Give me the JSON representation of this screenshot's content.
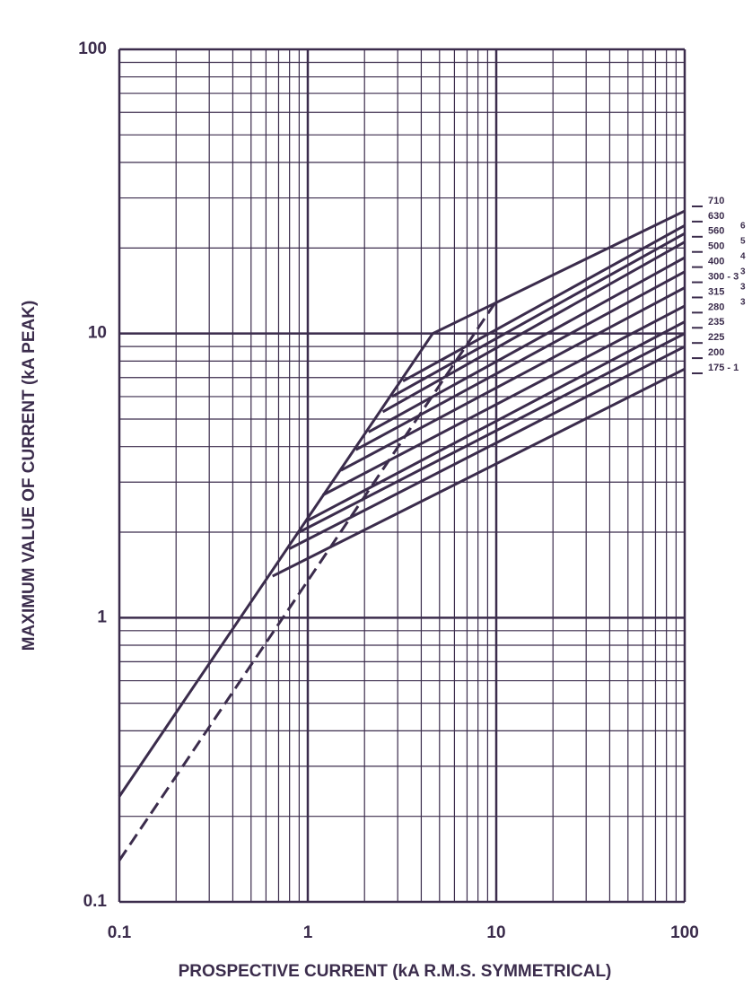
{
  "chart_data": {
    "type": "line",
    "xlabel": "PROSPECTIVE CURRENT (kA R.M.S. SYMMETRICAL)",
    "ylabel": "MAXIMUM VALUE OF CURRENT (kA PEAK)",
    "xlog": true,
    "ylog": true,
    "grid": true,
    "xlim": [
      0.1,
      100
    ],
    "ylim": [
      0.1,
      100
    ],
    "xticks": [
      0.1,
      1,
      10,
      100
    ],
    "yticks": [
      0.1,
      1,
      10,
      100
    ],
    "xminorticks": [
      0.2,
      0.3,
      0.4,
      0.5,
      0.6,
      0.7,
      0.8,
      0.9,
      2,
      3,
      4,
      5,
      6,
      7,
      8,
      9,
      20,
      30,
      40,
      50,
      60,
      70,
      80,
      90
    ],
    "yminorticks": [
      0.2,
      0.3,
      0.4,
      0.5,
      0.6,
      0.7,
      0.8,
      0.9,
      2,
      3,
      4,
      5,
      6,
      7,
      8,
      9,
      20,
      30,
      40,
      50,
      60,
      70,
      80,
      90
    ],
    "color": "#3b2c4c",
    "series": [
      {
        "x": [
          0.1,
          4.6
        ],
        "values": [
          0.235,
          10
        ]
      },
      {
        "x": [
          0.1,
          10
        ],
        "values": [
          0.14,
          13
        ],
        "dashed": true
      },
      {
        "name": "710",
        "x": [
          4.6,
          100
        ],
        "values": [
          10,
          27
        ]
      },
      {
        "name": "630",
        "x": [
          3.2,
          100
        ],
        "values": [
          6.8,
          24
        ]
      },
      {
        "name": "560",
        "x": [
          2.8,
          100
        ],
        "values": [
          6.0,
          22.5
        ]
      },
      {
        "name": "500",
        "x": [
          2.5,
          100
        ],
        "values": [
          5.3,
          21
        ]
      },
      {
        "name": "400",
        "x": [
          2.1,
          100
        ],
        "values": [
          4.5,
          18.5
        ]
      },
      {
        "name": "300 - 3",
        "x": [
          1.8,
          100
        ],
        "values": [
          3.9,
          16.5
        ]
      },
      {
        "name": "315",
        "x": [
          1.5,
          100
        ],
        "values": [
          3.3,
          14.5
        ]
      },
      {
        "name": "280",
        "x": [
          1.2,
          100
        ],
        "values": [
          2.7,
          12.5
        ]
      },
      {
        "name": "235",
        "x": [
          1.0,
          100
        ],
        "values": [
          2.2,
          11
        ]
      },
      {
        "name": "225",
        "x": [
          0.9,
          100
        ],
        "values": [
          2.0,
          10
        ]
      },
      {
        "name": "200",
        "x": [
          0.8,
          100
        ],
        "values": [
          1.75,
          9
        ]
      },
      {
        "name": "175 - 1",
        "x": [
          0.65,
          100
        ],
        "values": [
          1.4,
          7.5
        ]
      }
    ],
    "side_marks": [
      "6",
      "5",
      "4",
      "3",
      "3",
      "3"
    ]
  }
}
